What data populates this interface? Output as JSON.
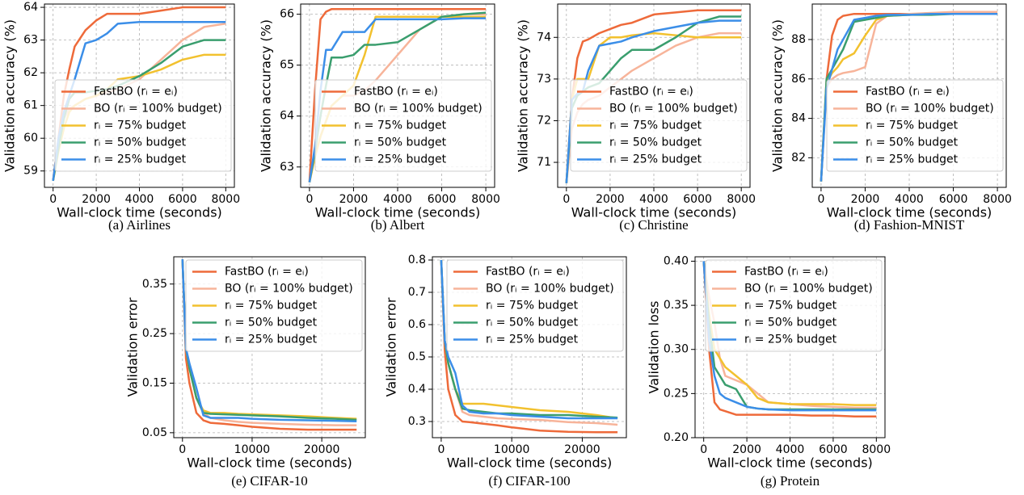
{
  "chart_data": [
    {
      "type": "line",
      "caption": "(a) Airlines",
      "xlabel": "Wall-clock time (seconds)",
      "ylabel": "Validation accuracy (%)",
      "xlim": [
        -400,
        8400
      ],
      "ylim": [
        58.5,
        64.1
      ],
      "xticks": [
        0,
        2000,
        4000,
        6000,
        8000
      ],
      "yticks": [
        59,
        60,
        61,
        62,
        63,
        64
      ],
      "grid": true,
      "legend": "lower right",
      "x": [
        0,
        250,
        500,
        750,
        1000,
        1500,
        2000,
        2500,
        3000,
        4000,
        5000,
        6000,
        7000,
        8000
      ],
      "series": [
        {
          "name": "FastBO (rᵢ = eᵢ)",
          "color": "#ee6a3a",
          "values": [
            58.7,
            60.0,
            61.3,
            62.1,
            62.8,
            63.3,
            63.6,
            63.8,
            63.8,
            63.8,
            63.9,
            64.0,
            64.0,
            64.0
          ]
        },
        {
          "name": "BO (rᵢ = 100% budget)",
          "color": "#f7b49a",
          "values": [
            58.7,
            59.8,
            60.6,
            60.9,
            61.0,
            61.2,
            61.3,
            61.4,
            61.5,
            61.8,
            62.4,
            63.0,
            63.4,
            63.5
          ]
        },
        {
          "name": "rᵢ = 75% budget",
          "color": "#f2c12e",
          "values": [
            58.7,
            59.6,
            60.3,
            60.8,
            61.0,
            61.2,
            61.3,
            61.5,
            61.8,
            61.9,
            62.1,
            62.4,
            62.55,
            62.55
          ]
        },
        {
          "name": "rᵢ = 50% budget",
          "color": "#3a9e6e",
          "values": [
            58.7,
            59.7,
            60.6,
            61.2,
            61.4,
            61.4,
            61.45,
            61.5,
            61.6,
            61.9,
            62.3,
            62.8,
            63.0,
            63.0
          ]
        },
        {
          "name": "rᵢ = 25% budget",
          "color": "#3b8ee8",
          "values": [
            58.7,
            60.0,
            60.8,
            61.3,
            61.8,
            62.9,
            63.0,
            63.2,
            63.5,
            63.55,
            63.55,
            63.55,
            63.55,
            63.55
          ]
        }
      ]
    },
    {
      "type": "line",
      "caption": "(b) Albert",
      "xlabel": "Wall-clock time (seconds)",
      "ylabel": "Validation accuracy (%)",
      "xlim": [
        -400,
        8400
      ],
      "ylim": [
        62.6,
        66.2
      ],
      "xticks": [
        0,
        2000,
        4000,
        6000,
        8000
      ],
      "yticks": [
        63,
        64,
        65,
        66
      ],
      "grid": true,
      "legend": "lower right",
      "x": [
        0,
        250,
        500,
        750,
        1000,
        1500,
        2000,
        2500,
        3000,
        4000,
        5000,
        6000,
        7000,
        8000
      ],
      "series": [
        {
          "name": "FastBO (rᵢ = eᵢ)",
          "color": "#ee6a3a",
          "values": [
            62.7,
            64.5,
            65.9,
            66.05,
            66.1,
            66.1,
            66.1,
            66.1,
            66.1,
            66.1,
            66.1,
            66.1,
            66.1,
            66.1
          ]
        },
        {
          "name": "BO (rᵢ = 100% budget)",
          "color": "#f7b49a",
          "values": [
            62.7,
            63.2,
            63.6,
            63.9,
            64.2,
            64.4,
            64.4,
            64.5,
            64.7,
            65.2,
            65.7,
            65.95,
            66.0,
            66.0
          ]
        },
        {
          "name": "rᵢ = 75% budget",
          "color": "#f2c12e",
          "values": [
            62.7,
            63.2,
            63.6,
            63.9,
            64.2,
            64.4,
            64.6,
            65.2,
            65.95,
            65.95,
            65.95,
            65.95,
            65.95,
            65.95
          ]
        },
        {
          "name": "rᵢ = 50% budget",
          "color": "#3a9e6e",
          "values": [
            62.7,
            63.3,
            64.0,
            64.6,
            65.15,
            65.15,
            65.2,
            65.4,
            65.4,
            65.45,
            65.7,
            65.95,
            66.0,
            66.03
          ]
        },
        {
          "name": "rᵢ = 25% budget",
          "color": "#3b8ee8",
          "values": [
            62.7,
            63.4,
            64.5,
            65.3,
            65.3,
            65.65,
            65.65,
            65.65,
            65.9,
            65.9,
            65.9,
            65.9,
            65.92,
            65.92
          ]
        }
      ]
    },
    {
      "type": "line",
      "caption": "(c) Christine",
      "xlabel": "Wall-clock time (seconds)",
      "ylabel": "Validation accuracy (%)",
      "xlim": [
        -400,
        8400
      ],
      "ylim": [
        70.4,
        74.8
      ],
      "xticks": [
        0,
        2000,
        4000,
        6000,
        8000
      ],
      "yticks": [
        71,
        72,
        73,
        74
      ],
      "grid": true,
      "legend": "lower right",
      "x": [
        0,
        250,
        500,
        750,
        1000,
        1500,
        2000,
        2500,
        3000,
        4000,
        5000,
        6000,
        7000,
        8000
      ],
      "series": [
        {
          "name": "FastBO (rᵢ = eᵢ)",
          "color": "#ee6a3a",
          "values": [
            70.5,
            72.5,
            73.5,
            73.9,
            73.95,
            74.1,
            74.2,
            74.3,
            74.35,
            74.55,
            74.6,
            74.65,
            74.65,
            74.65
          ]
        },
        {
          "name": "BO (rᵢ = 100% budget)",
          "color": "#f7b49a",
          "values": [
            70.5,
            71.8,
            72.2,
            72.4,
            72.5,
            72.6,
            72.8,
            73.0,
            73.2,
            73.5,
            73.8,
            74.0,
            74.1,
            74.1
          ]
        },
        {
          "name": "rᵢ = 75% budget",
          "color": "#f2c12e",
          "values": [
            70.5,
            72.5,
            73.0,
            73.0,
            73.0,
            73.8,
            74.0,
            74.0,
            74.05,
            74.1,
            74.05,
            74.0,
            74.0,
            74.0
          ]
        },
        {
          "name": "rᵢ = 50% budget",
          "color": "#3a9e6e",
          "values": [
            70.5,
            72.3,
            72.6,
            72.7,
            72.8,
            72.9,
            73.2,
            73.5,
            73.7,
            73.7,
            74.0,
            74.35,
            74.5,
            74.5
          ]
        },
        {
          "name": "rᵢ = 25% budget",
          "color": "#3b8ee8",
          "values": [
            70.5,
            72.5,
            72.65,
            72.7,
            73.2,
            73.8,
            73.85,
            73.9,
            74.0,
            74.15,
            74.25,
            74.35,
            74.4,
            74.4
          ]
        }
      ]
    },
    {
      "type": "line",
      "caption": "(d) Fashion-MNIST",
      "xlabel": "Wall-clock time (seconds)",
      "ylabel": "Validation accuracy (%)",
      "xlim": [
        -400,
        8400
      ],
      "ylim": [
        80.5,
        89.8
      ],
      "xticks": [
        0,
        2000,
        4000,
        6000,
        8000
      ],
      "yticks": [
        82,
        84,
        86,
        88
      ],
      "grid": true,
      "legend": "lower right",
      "x": [
        0,
        250,
        500,
        750,
        1000,
        1500,
        2000,
        2500,
        3000,
        4000,
        5000,
        6000,
        7000,
        8000
      ],
      "series": [
        {
          "name": "FastBO (rᵢ = eᵢ)",
          "color": "#ee6a3a",
          "values": [
            80.8,
            86.0,
            88.2,
            89.0,
            89.2,
            89.3,
            89.3,
            89.3,
            89.3,
            89.3,
            89.3,
            89.3,
            89.3,
            89.3
          ]
        },
        {
          "name": "BO (rᵢ = 100% budget)",
          "color": "#f7b49a",
          "values": [
            80.8,
            85.6,
            86.0,
            86.2,
            86.3,
            86.4,
            86.6,
            88.8,
            89.2,
            89.3,
            89.35,
            89.4,
            89.4,
            89.4
          ]
        },
        {
          "name": "rᵢ = 75% budget",
          "color": "#f2c12e",
          "values": [
            80.8,
            85.8,
            86.3,
            86.6,
            87.0,
            87.3,
            88.2,
            89.0,
            89.2,
            89.25,
            89.3,
            89.3,
            89.3,
            89.3
          ]
        },
        {
          "name": "rᵢ = 50% budget",
          "color": "#3a9e6e",
          "values": [
            80.8,
            86.0,
            86.5,
            87.0,
            87.5,
            88.9,
            89.0,
            89.1,
            89.2,
            89.25,
            89.25,
            89.3,
            89.3,
            89.3
          ]
        },
        {
          "name": "rᵢ = 25% budget",
          "color": "#3b8ee8",
          "values": [
            80.8,
            85.5,
            86.5,
            87.5,
            88.0,
            89.0,
            89.1,
            89.2,
            89.25,
            89.25,
            89.3,
            89.3,
            89.3,
            89.3
          ]
        }
      ]
    },
    {
      "type": "line",
      "caption": "(e) CIFAR-10",
      "xlabel": "Wall-clock time (seconds)",
      "ylabel": "Validation error",
      "xlim": [
        -1250,
        26250
      ],
      "ylim": [
        0.04,
        0.405
      ],
      "xticks": [
        0,
        10000,
        20000
      ],
      "yticks": [
        0.05,
        0.15,
        0.25,
        0.35
      ],
      "grid": true,
      "legend": "upper right",
      "x": [
        0,
        500,
        1000,
        2000,
        3000,
        4000,
        6000,
        8000,
        10000,
        14000,
        18000,
        22000,
        25000
      ],
      "series": [
        {
          "name": "FastBO (rᵢ = eᵢ)",
          "color": "#ee6a3a",
          "values": [
            0.4,
            0.2,
            0.15,
            0.09,
            0.075,
            0.07,
            0.068,
            0.065,
            0.062,
            0.058,
            0.056,
            0.056,
            0.056
          ]
        },
        {
          "name": "BO (rᵢ = 100% budget)",
          "color": "#f7b49a",
          "values": [
            0.4,
            0.22,
            0.18,
            0.12,
            0.09,
            0.08,
            0.075,
            0.072,
            0.07,
            0.068,
            0.066,
            0.065,
            0.065
          ]
        },
        {
          "name": "rᵢ = 75% budget",
          "color": "#f2c12e",
          "values": [
            0.4,
            0.22,
            0.18,
            0.12,
            0.095,
            0.09,
            0.09,
            0.088,
            0.087,
            0.085,
            0.083,
            0.08,
            0.078
          ]
        },
        {
          "name": "rᵢ = 50% budget",
          "color": "#3a9e6e",
          "values": [
            0.4,
            0.22,
            0.18,
            0.12,
            0.09,
            0.088,
            0.087,
            0.086,
            0.085,
            0.083,
            0.08,
            0.078,
            0.076
          ]
        },
        {
          "name": "rᵢ = 25% budget",
          "color": "#3b8ee8",
          "values": [
            0.4,
            0.22,
            0.19,
            0.14,
            0.085,
            0.08,
            0.08,
            0.08,
            0.078,
            0.076,
            0.075,
            0.074,
            0.073
          ]
        }
      ]
    },
    {
      "type": "line",
      "caption": "(f) CIFAR-100",
      "xlabel": "Wall-clock time (seconds)",
      "ylabel": "Validation error",
      "xlim": [
        -1250,
        26250
      ],
      "ylim": [
        0.25,
        0.81
      ],
      "xticks": [
        0,
        10000,
        20000
      ],
      "yticks": [
        0.3,
        0.4,
        0.5,
        0.6,
        0.7,
        0.8
      ],
      "grid": true,
      "legend": "upper right",
      "x": [
        0,
        500,
        1000,
        2000,
        3000,
        4000,
        6000,
        8000,
        10000,
        14000,
        18000,
        22000,
        25000
      ],
      "series": [
        {
          "name": "FastBO (rᵢ = eᵢ)",
          "color": "#ee6a3a",
          "values": [
            0.8,
            0.52,
            0.4,
            0.32,
            0.3,
            0.298,
            0.293,
            0.288,
            0.282,
            0.272,
            0.268,
            0.267,
            0.267
          ]
        },
        {
          "name": "BO (rᵢ = 100% budget)",
          "color": "#f7b49a",
          "values": [
            0.8,
            0.55,
            0.48,
            0.4,
            0.33,
            0.32,
            0.315,
            0.31,
            0.308,
            0.305,
            0.298,
            0.295,
            0.29
          ]
        },
        {
          "name": "rᵢ = 75% budget",
          "color": "#f2c12e",
          "values": [
            0.8,
            0.55,
            0.48,
            0.4,
            0.355,
            0.355,
            0.355,
            0.35,
            0.345,
            0.335,
            0.33,
            0.32,
            0.31
          ]
        },
        {
          "name": "rᵢ = 50% budget",
          "color": "#3a9e6e",
          "values": [
            0.8,
            0.55,
            0.48,
            0.4,
            0.34,
            0.335,
            0.33,
            0.325,
            0.325,
            0.32,
            0.32,
            0.315,
            0.312
          ]
        },
        {
          "name": "rᵢ = 25% budget",
          "color": "#3b8ee8",
          "values": [
            0.8,
            0.55,
            0.5,
            0.45,
            0.35,
            0.33,
            0.325,
            0.325,
            0.32,
            0.315,
            0.31,
            0.31,
            0.31
          ]
        }
      ]
    },
    {
      "type": "line",
      "caption": "(g) Protein",
      "xlabel": "Wall-clock time (seconds)",
      "ylabel": "Validation loss",
      "xlim": [
        -400,
        8400
      ],
      "ylim": [
        0.2,
        0.405
      ],
      "xticks": [
        0,
        2000,
        4000,
        6000,
        8000
      ],
      "yticks": [
        {
          "value": 0.2,
          "label": "0.20"
        },
        0.25,
        {
          "value": 0.3,
          "label": "0.30"
        },
        0.35,
        {
          "value": 0.4,
          "label": "0.40"
        }
      ],
      "grid": true,
      "legend": "upper right",
      "x": [
        0,
        250,
        500,
        750,
        1000,
        1500,
        2000,
        2500,
        3000,
        4000,
        5000,
        6000,
        7000,
        8000
      ],
      "series": [
        {
          "name": "FastBO (rᵢ = eᵢ)",
          "color": "#ee6a3a",
          "values": [
            0.4,
            0.3,
            0.24,
            0.232,
            0.23,
            0.226,
            0.226,
            0.226,
            0.226,
            0.226,
            0.225,
            0.225,
            0.224,
            0.224
          ]
        },
        {
          "name": "BO (rᵢ = 100% budget)",
          "color": "#f7b49a",
          "values": [
            0.4,
            0.36,
            0.33,
            0.29,
            0.27,
            0.265,
            0.26,
            0.25,
            0.24,
            0.238,
            0.236,
            0.235,
            0.234,
            0.234
          ]
        },
        {
          "name": "rᵢ = 75% budget",
          "color": "#f2c12e",
          "values": [
            0.4,
            0.34,
            0.3,
            0.29,
            0.28,
            0.27,
            0.26,
            0.245,
            0.24,
            0.238,
            0.238,
            0.238,
            0.237,
            0.237
          ]
        },
        {
          "name": "rᵢ = 50% budget",
          "color": "#3a9e6e",
          "values": [
            0.4,
            0.33,
            0.28,
            0.27,
            0.26,
            0.255,
            0.235,
            0.233,
            0.232,
            0.232,
            0.232,
            0.232,
            0.232,
            0.232
          ]
        },
        {
          "name": "rᵢ = 25% budget",
          "color": "#3b8ee8",
          "values": [
            0.4,
            0.31,
            0.27,
            0.25,
            0.245,
            0.24,
            0.235,
            0.233,
            0.232,
            0.231,
            0.231,
            0.231,
            0.231,
            0.231
          ]
        }
      ]
    }
  ]
}
